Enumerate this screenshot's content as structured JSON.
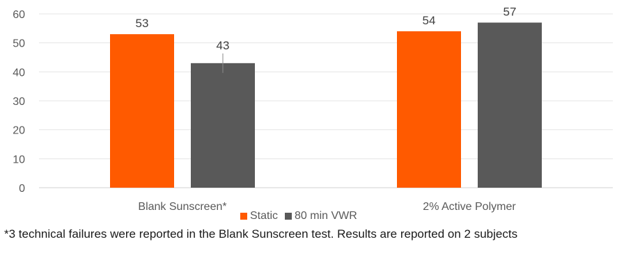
{
  "chart_data": {
    "type": "bar",
    "categories": [
      "Blank Sunscreen*",
      "2% Active Polymer"
    ],
    "series": [
      {
        "name": "Static",
        "values": [
          53,
          54
        ],
        "color": "#ff5a00"
      },
      {
        "name": "80 min VWR",
        "values": [
          43,
          57
        ],
        "color": "#595959"
      }
    ],
    "data_labels": [
      [
        "53",
        "54"
      ],
      [
        "43",
        "57"
      ]
    ],
    "error_bars": {
      "series": "80 min VWR",
      "category": "Blank Sunscreen*",
      "visible": true
    },
    "ylim": [
      0,
      60
    ],
    "yticks": [
      0,
      10,
      20,
      30,
      40,
      50,
      60
    ],
    "grid": true,
    "legend_position": "bottom",
    "title": "",
    "xlabel": "",
    "ylabel": ""
  },
  "footnote": "*3 technical failures were reported in the Blank Sunscreen test. Results are reported on 2 subjects"
}
